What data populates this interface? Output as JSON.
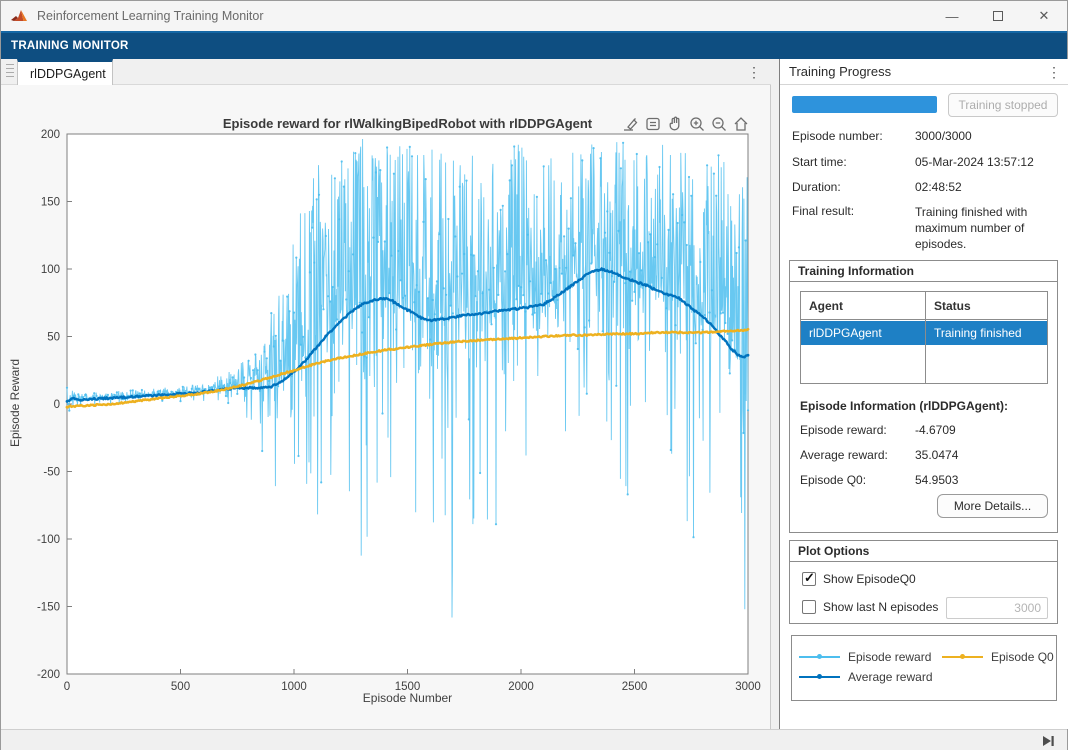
{
  "window": {
    "title": "Reinforcement Learning Training Monitor"
  },
  "icons": {
    "overflow": "⋮",
    "minimize": "—",
    "close": "✕",
    "check": "✓"
  },
  "ribbon": {
    "label": "TRAINING MONITOR"
  },
  "document_tab": {
    "label": "rlDDPGAgent"
  },
  "progress_panel": {
    "title": "Training Progress",
    "stop_button_label": "Training stopped",
    "progress_percent": 100,
    "progress_color": "#2e93dc",
    "fields": [
      {
        "label": "Episode number:",
        "value": "3000/3000"
      },
      {
        "label": "Start time:",
        "value": "05-Mar-2024 13:57:12"
      },
      {
        "label": "Duration:",
        "value": "02:48:52"
      },
      {
        "label": "Final result:",
        "value": "Training finished with maximum number of episodes."
      }
    ]
  },
  "training_information": {
    "title": "Training Information",
    "table": {
      "columns": [
        "Agent",
        "Status"
      ],
      "rows": [
        {
          "agent": "rlDDPGAgent",
          "status": "Training finished",
          "selected": true
        }
      ],
      "selection_color": "#1e80c5"
    },
    "episode_info_title": "Episode Information (rlDDPGAgent):",
    "fields": [
      {
        "label": "Episode reward:",
        "value": "-4.6709"
      },
      {
        "label": "Average reward:",
        "value": "35.0474"
      },
      {
        "label": "Episode Q0:",
        "value": "54.9503"
      }
    ],
    "more_details_button": "More Details..."
  },
  "plot_options": {
    "title": "Plot Options",
    "checkboxes": [
      {
        "label": "Show EpisodeQ0",
        "checked": true
      },
      {
        "label": "Show last N episodes",
        "checked": false
      }
    ],
    "n_episodes_value": "3000"
  },
  "legend": {
    "items": [
      {
        "label": "Episode reward",
        "color": "#4DBEEE"
      },
      {
        "label": "Average reward",
        "color": "#0072BD"
      },
      {
        "label": "Episode Q0",
        "color": "#EDB120"
      }
    ]
  },
  "chart_data": {
    "type": "line",
    "title": "Episode reward for rlWalkingBipedRobot with rlDDPGAgent",
    "xlabel": "Episode Number",
    "ylabel": "Episode Reward",
    "xlim": [
      0,
      3000
    ],
    "ylim": [
      -200,
      200
    ],
    "xticks": [
      0,
      500,
      1000,
      1500,
      2000,
      2500,
      3000
    ],
    "yticks": [
      -200,
      -150,
      -100,
      -50,
      0,
      50,
      100,
      150,
      200
    ],
    "grid": false,
    "legend_position": "external-bottom-right",
    "axis_color": "#7f7f7f",
    "tick_label_color": "#404040",
    "plot_bg": "#ffffff",
    "series": [
      {
        "name": "Episode reward",
        "color": "#4DBEEE",
        "style": "noisy-line-with-markers",
        "description": "Per-episode reward, very noisy; tight band ±5 around mean until ~ep700, variance grows rapidly after ep850; spikes up to ~195 and drops to ~-150 from ep1000 onward",
        "final_value": -4.6709,
        "up_amp_keyframes": [
          [
            0,
            12
          ],
          [
            40,
            6
          ],
          [
            120,
            5
          ],
          [
            400,
            5
          ],
          [
            600,
            7
          ],
          [
            700,
            12
          ],
          [
            780,
            20
          ],
          [
            840,
            32
          ],
          [
            880,
            45
          ],
          [
            930,
            75
          ],
          [
            1000,
            110
          ],
          [
            1100,
            135
          ],
          [
            1250,
            125
          ],
          [
            1400,
            118
          ],
          [
            1550,
            125
          ],
          [
            1700,
            132
          ],
          [
            1850,
            120
          ],
          [
            2000,
            122
          ],
          [
            2150,
            108
          ],
          [
            2300,
            96
          ],
          [
            2450,
            100
          ],
          [
            2600,
            108
          ],
          [
            2750,
            118
          ],
          [
            2870,
            135
          ],
          [
            2950,
            142
          ],
          [
            3000,
            135
          ]
        ],
        "down_amp_keyframes": [
          [
            0,
            10
          ],
          [
            40,
            6
          ],
          [
            120,
            4
          ],
          [
            400,
            5
          ],
          [
            600,
            7
          ],
          [
            700,
            14
          ],
          [
            780,
            25
          ],
          [
            840,
            40
          ],
          [
            880,
            55
          ],
          [
            930,
            85
          ],
          [
            1000,
            105
          ],
          [
            1100,
            150
          ],
          [
            1200,
            175
          ],
          [
            1300,
            195
          ],
          [
            1400,
            205
          ],
          [
            1500,
            175
          ],
          [
            1600,
            185
          ],
          [
            1700,
            255
          ],
          [
            1800,
            165
          ],
          [
            1900,
            175
          ],
          [
            2000,
            165
          ],
          [
            2100,
            155
          ],
          [
            2200,
            145
          ],
          [
            2300,
            165
          ],
          [
            2400,
            155
          ],
          [
            2500,
            165
          ],
          [
            2600,
            175
          ],
          [
            2700,
            175
          ],
          [
            2800,
            185
          ],
          [
            2900,
            205
          ],
          [
            2950,
            195
          ],
          [
            3000,
            155
          ]
        ],
        "anchor_points": [
          [
            2986,
            -152
          ],
          [
            2996,
            168
          ],
          [
            3000,
            -4.6709
          ]
        ]
      },
      {
        "name": "Average reward",
        "color": "#0072BD",
        "style": "line-with-markers",
        "final_value": 35.0474,
        "keyframes": [
          [
            0,
            2
          ],
          [
            30,
            4
          ],
          [
            60,
            3
          ],
          [
            150,
            4
          ],
          [
            250,
            5
          ],
          [
            350,
            6
          ],
          [
            450,
            7
          ],
          [
            550,
            8
          ],
          [
            650,
            10
          ],
          [
            700,
            11
          ],
          [
            750,
            12
          ],
          [
            800,
            12
          ],
          [
            850,
            12
          ],
          [
            900,
            13
          ],
          [
            950,
            17
          ],
          [
            1000,
            24
          ],
          [
            1050,
            32
          ],
          [
            1100,
            42
          ],
          [
            1150,
            52
          ],
          [
            1200,
            60
          ],
          [
            1250,
            68
          ],
          [
            1300,
            74
          ],
          [
            1350,
            77
          ],
          [
            1400,
            78
          ],
          [
            1430,
            77
          ],
          [
            1470,
            72
          ],
          [
            1520,
            68
          ],
          [
            1560,
            64
          ],
          [
            1600,
            62
          ],
          [
            1650,
            63
          ],
          [
            1700,
            64
          ],
          [
            1750,
            66
          ],
          [
            1800,
            66
          ],
          [
            1850,
            68
          ],
          [
            1900,
            69
          ],
          [
            1950,
            70
          ],
          [
            2000,
            71
          ],
          [
            2050,
            72
          ],
          [
            2100,
            74
          ],
          [
            2150,
            79
          ],
          [
            2200,
            85
          ],
          [
            2250,
            91
          ],
          [
            2300,
            97
          ],
          [
            2350,
            100
          ],
          [
            2400,
            98
          ],
          [
            2450,
            94
          ],
          [
            2500,
            91
          ],
          [
            2550,
            88
          ],
          [
            2600,
            84
          ],
          [
            2650,
            81
          ],
          [
            2700,
            78
          ],
          [
            2750,
            71
          ],
          [
            2800,
            65
          ],
          [
            2850,
            57
          ],
          [
            2870,
            52
          ],
          [
            2900,
            47
          ],
          [
            2920,
            42
          ],
          [
            2950,
            37
          ],
          [
            2980,
            35
          ],
          [
            3000,
            36
          ]
        ]
      },
      {
        "name": "Episode Q0",
        "color": "#EDB120",
        "style": "line-with-markers",
        "final_value": 54.9503,
        "keyframes": [
          [
            0,
            -2
          ],
          [
            100,
            -1
          ],
          [
            200,
            0
          ],
          [
            300,
            2
          ],
          [
            400,
            4
          ],
          [
            500,
            6
          ],
          [
            600,
            8
          ],
          [
            700,
            11
          ],
          [
            800,
            15
          ],
          [
            900,
            20
          ],
          [
            1000,
            25
          ],
          [
            1100,
            30
          ],
          [
            1200,
            34
          ],
          [
            1300,
            37
          ],
          [
            1400,
            40
          ],
          [
            1500,
            42
          ],
          [
            1600,
            44
          ],
          [
            1700,
            46
          ],
          [
            1800,
            47
          ],
          [
            1900,
            48
          ],
          [
            2000,
            49
          ],
          [
            2100,
            50
          ],
          [
            2200,
            51
          ],
          [
            2300,
            51
          ],
          [
            2400,
            52
          ],
          [
            2500,
            52
          ],
          [
            2600,
            53
          ],
          [
            2700,
            53
          ],
          [
            2800,
            53
          ],
          [
            2900,
            54
          ],
          [
            3000,
            55
          ]
        ]
      }
    ]
  }
}
